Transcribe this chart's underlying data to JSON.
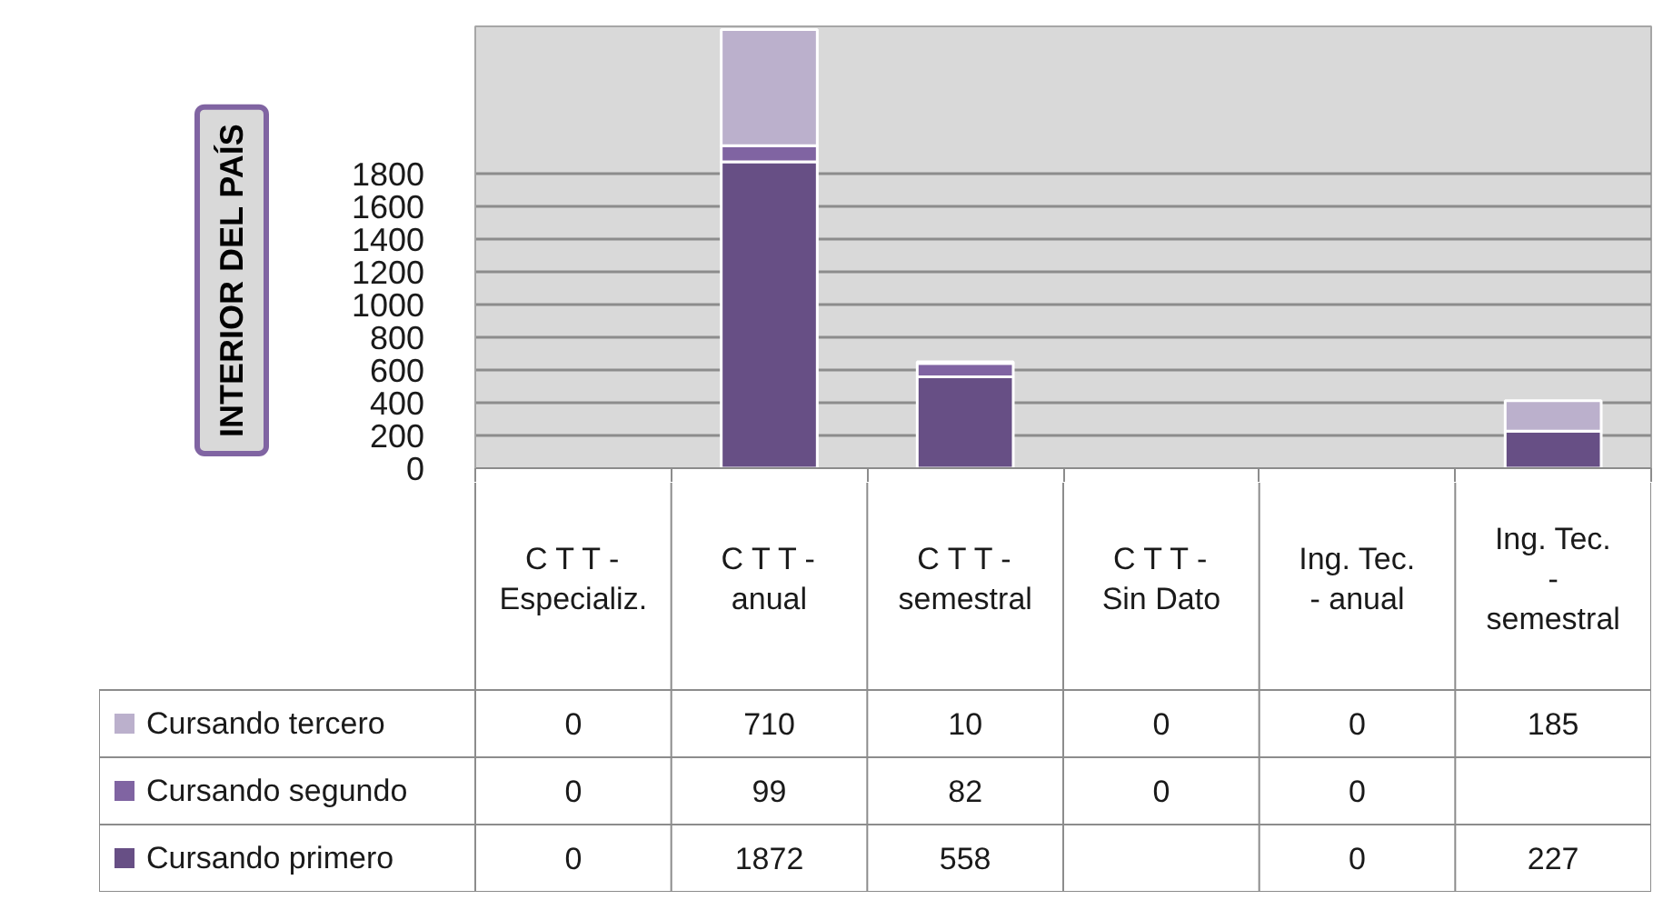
{
  "chart_data": {
    "type": "bar",
    "stacked": true,
    "ylabel": "INTERIOR DEL PAÍS",
    "categories": [
      "C T T - Especializ.",
      "C T T - anual",
      "C T T - semestral",
      "C T T - Sin Dato",
      "Ing. Tec. - anual",
      "Ing. Tec. - semestral"
    ],
    "series": [
      {
        "name": "Cursando primero",
        "color": "#674f85",
        "values": [
          0,
          1872,
          558,
          null,
          0,
          227
        ]
      },
      {
        "name": "Cursando segundo",
        "color": "#8064a2",
        "values": [
          0,
          99,
          82,
          0,
          0,
          null
        ]
      },
      {
        "name": "Cursando tercero",
        "color": "#bbb0cc",
        "values": [
          0,
          710,
          10,
          0,
          0,
          185
        ]
      }
    ],
    "ylim": [
      0,
      2700
    ],
    "yticks": [
      0,
      200,
      400,
      600,
      800,
      1000,
      1200,
      1400,
      1600,
      1800
    ],
    "grid": "y",
    "legend": "bottom",
    "data_labels": true
  }
}
